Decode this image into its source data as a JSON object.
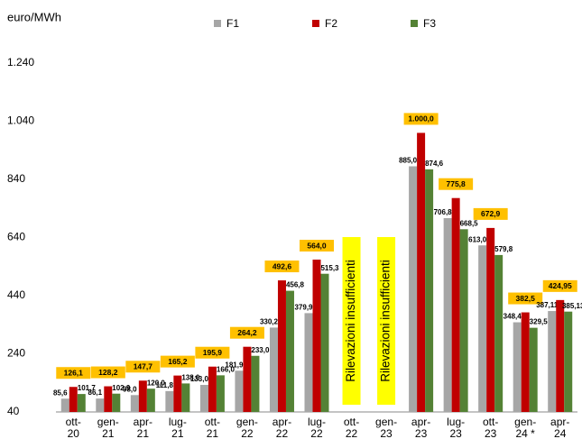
{
  "chart_data": {
    "type": "bar",
    "y_label": "euro/MWh",
    "categories": [
      "ott-20",
      "gen-21",
      "apr-21",
      "lug-21",
      "ott-21",
      "gen-22",
      "apr-22",
      "lug-22",
      "ott-22",
      "gen-23",
      "apr-23",
      "lug-23",
      "ott-23",
      "gen-24 *",
      "apr-24"
    ],
    "series": [
      {
        "name": "F1",
        "color": "#a6a6a6",
        "values": [
          85.6,
          86.1,
          98.0,
          111.8,
          133.0,
          181.9,
          330.2,
          379.9,
          null,
          null,
          885.0,
          706.8,
          613.0,
          348.4,
          387.11
        ],
        "value_labels": [
          "85,6",
          "86,1",
          "98,0",
          "111,8",
          "133,0",
          "181,9",
          "330,2",
          "379,9",
          null,
          null,
          "885,0",
          "706,8",
          "613,0",
          "348,4",
          "387,11"
        ]
      },
      {
        "name": "F2",
        "color": "#c00000",
        "values": [
          126.1,
          128.2,
          147.7,
          165.2,
          195.9,
          264.2,
          492.6,
          564.0,
          null,
          null,
          1000.0,
          775.8,
          672.9,
          382.5,
          424.95
        ],
        "value_labels": [
          "126,1",
          "128,2",
          "147,7",
          "165,2",
          "195,9",
          "264,2",
          "492,6",
          "564,0",
          null,
          null,
          "1.000,0",
          "775,8",
          "672,9",
          "382,5",
          "424,95"
        ]
      },
      {
        "name": "F3",
        "color": "#548235",
        "values": [
          101.7,
          102.9,
          120.0,
          138.0,
          166.0,
          233.0,
          456.8,
          515.3,
          null,
          null,
          874.6,
          668.5,
          579.8,
          329.5,
          385.13
        ],
        "value_labels": [
          "101,7",
          "102,9",
          "120,0",
          "138,0",
          "166,0",
          "233,0",
          "456,8",
          "515,3",
          null,
          null,
          "874,6",
          "668,5",
          "579,8",
          "329,5",
          "385,13"
        ]
      }
    ],
    "annotations": [
      {
        "text": "Rilevazioni insufficienti",
        "category": "ott-22"
      },
      {
        "text": "Rilevazioni insufficienti",
        "category": "gen-23"
      }
    ],
    "ylim": [
      40,
      1240
    ],
    "yticks": [
      40,
      240,
      440,
      640,
      840,
      {
        "value": 1040,
        "label": "1.040"
      },
      {
        "value": 1240,
        "label": "1.240"
      }
    ],
    "label_box_color": "#ffc000",
    "annotation_color": "#ffff00"
  }
}
